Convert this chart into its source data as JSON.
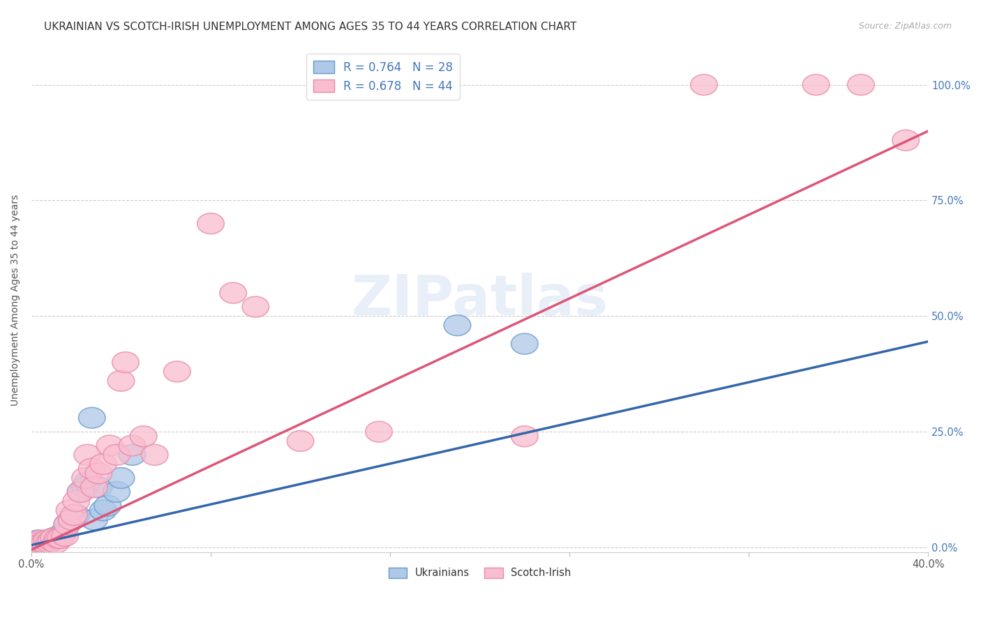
{
  "title": "UKRAINIAN VS SCOTCH-IRISH UNEMPLOYMENT AMONG AGES 35 TO 44 YEARS CORRELATION CHART",
  "source": "Source: ZipAtlas.com",
  "ylabel": "Unemployment Among Ages 35 to 44 years",
  "xlim": [
    0.0,
    0.4
  ],
  "ylim": [
    -0.01,
    1.08
  ],
  "xticks": [
    0.0,
    0.08,
    0.16,
    0.24,
    0.32,
    0.4
  ],
  "xtick_labels": [
    "0.0%",
    "",
    "",
    "",
    "",
    "40.0%"
  ],
  "ytick_labels": [
    "0.0%",
    "25.0%",
    "50.0%",
    "75.0%",
    "100.0%"
  ],
  "yticks": [
    0.0,
    0.25,
    0.5,
    0.75,
    1.0
  ],
  "background_color": "#ffffff",
  "watermark": "ZIPatlas",
  "ukrainian_color": "#aec8e8",
  "scotchirish_color": "#f9bdd0",
  "ukrainian_edge_color": "#6699cc",
  "scotchirish_edge_color": "#e88aaa",
  "ukrainian_line_color": "#3366aa",
  "scotchirish_line_color": "#dd5577",
  "right_tick_color": "#4477bb",
  "ukrainian_x": [
    0.001,
    0.002,
    0.003,
    0.004,
    0.005,
    0.006,
    0.007,
    0.008,
    0.009,
    0.01,
    0.012,
    0.014,
    0.016,
    0.018,
    0.02,
    0.022,
    0.024,
    0.025,
    0.027,
    0.028,
    0.03,
    0.032,
    0.034,
    0.038,
    0.04,
    0.045,
    0.19,
    0.22
  ],
  "ukrainian_y": [
    0.01,
    0.01,
    0.015,
    0.01,
    0.01,
    0.01,
    0.015,
    0.01,
    0.015,
    0.02,
    0.02,
    0.03,
    0.05,
    0.06,
    0.07,
    0.12,
    0.13,
    0.14,
    0.28,
    0.06,
    0.13,
    0.08,
    0.09,
    0.12,
    0.15,
    0.2,
    0.48,
    0.44
  ],
  "scotchirish_x": [
    0.001,
    0.002,
    0.003,
    0.004,
    0.005,
    0.006,
    0.007,
    0.008,
    0.009,
    0.01,
    0.011,
    0.012,
    0.013,
    0.015,
    0.016,
    0.017,
    0.018,
    0.019,
    0.02,
    0.022,
    0.024,
    0.025,
    0.027,
    0.028,
    0.03,
    0.032,
    0.035,
    0.038,
    0.04,
    0.042,
    0.045,
    0.05,
    0.055,
    0.065,
    0.08,
    0.09,
    0.1,
    0.12,
    0.155,
    0.22,
    0.3,
    0.35,
    0.37,
    0.39
  ],
  "scotchirish_y": [
    0.01,
    0.01,
    0.01,
    0.015,
    0.01,
    0.01,
    0.015,
    0.01,
    0.015,
    0.02,
    0.01,
    0.02,
    0.02,
    0.025,
    0.05,
    0.08,
    0.06,
    0.07,
    0.1,
    0.12,
    0.15,
    0.2,
    0.17,
    0.13,
    0.16,
    0.18,
    0.22,
    0.2,
    0.36,
    0.4,
    0.22,
    0.24,
    0.2,
    0.38,
    0.7,
    0.55,
    0.52,
    0.23,
    0.25,
    0.24,
    1.0,
    1.0,
    1.0,
    0.88
  ],
  "ukr_line_x0": 0.0,
  "ukr_line_y0": 0.005,
  "ukr_line_x1": 0.4,
  "ukr_line_y1": 0.445,
  "sco_line_x0": 0.0,
  "sco_line_y0": -0.005,
  "sco_line_x1": 0.4,
  "sco_line_y1": 0.9,
  "title_fontsize": 11,
  "axis_label_fontsize": 10,
  "tick_fontsize": 10.5,
  "legend_fontsize": 12
}
